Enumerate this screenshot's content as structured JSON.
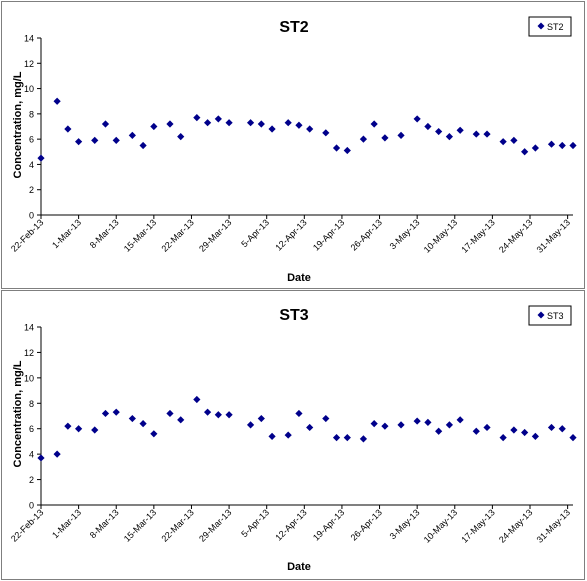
{
  "chart_data": [
    {
      "type": "scatter",
      "title": "ST2",
      "xlabel": "Date",
      "ylabel": "Concentration, mg/L",
      "ylim": [
        0,
        14
      ],
      "yticks": [
        "0",
        "2",
        "4",
        "6",
        "8",
        "10",
        "12",
        "14"
      ],
      "xlim": [
        "2013-02-22",
        "2013-06-01"
      ],
      "xticks": [
        {
          "date": "2013-02-22",
          "label": "22-Feb-13"
        },
        {
          "date": "2013-03-01",
          "label": "1-Mar-13"
        },
        {
          "date": "2013-03-08",
          "label": "8-Mar-13"
        },
        {
          "date": "2013-03-15",
          "label": "15-Mar-13"
        },
        {
          "date": "2013-03-22",
          "label": "22-Mar-13"
        },
        {
          "date": "2013-03-29",
          "label": "29-Mar-13"
        },
        {
          "date": "2013-04-05",
          "label": "5-Apr-13"
        },
        {
          "date": "2013-04-12",
          "label": "12-Apr-13"
        },
        {
          "date": "2013-04-19",
          "label": "19-Apr-13"
        },
        {
          "date": "2013-04-26",
          "label": "26-Apr-13"
        },
        {
          "date": "2013-05-03",
          "label": "3-May-13"
        },
        {
          "date": "2013-05-10",
          "label": "10-May-13"
        },
        {
          "date": "2013-05-17",
          "label": "17-May-13"
        },
        {
          "date": "2013-05-24",
          "label": "24-May-13"
        },
        {
          "date": "2013-05-31",
          "label": "31-May-13"
        }
      ],
      "legend": {
        "position": "top-right"
      },
      "grid": false,
      "series": [
        {
          "name": "ST2",
          "color": "#00008b",
          "marker": "diamond",
          "points": [
            {
              "x": "2013-02-22",
              "y": 4.5
            },
            {
              "x": "2013-02-25",
              "y": 9.0
            },
            {
              "x": "2013-02-27",
              "y": 6.8
            },
            {
              "x": "2013-03-01",
              "y": 5.8
            },
            {
              "x": "2013-03-04",
              "y": 5.9
            },
            {
              "x": "2013-03-06",
              "y": 7.2
            },
            {
              "x": "2013-03-08",
              "y": 5.9
            },
            {
              "x": "2013-03-11",
              "y": 6.3
            },
            {
              "x": "2013-03-13",
              "y": 5.5
            },
            {
              "x": "2013-03-15",
              "y": 7.0
            },
            {
              "x": "2013-03-18",
              "y": 7.2
            },
            {
              "x": "2013-03-20",
              "y": 6.2
            },
            {
              "x": "2013-03-23",
              "y": 7.7
            },
            {
              "x": "2013-03-25",
              "y": 7.3
            },
            {
              "x": "2013-03-27",
              "y": 7.6
            },
            {
              "x": "2013-03-29",
              "y": 7.3
            },
            {
              "x": "2013-04-02",
              "y": 7.3
            },
            {
              "x": "2013-04-04",
              "y": 7.2
            },
            {
              "x": "2013-04-06",
              "y": 6.8
            },
            {
              "x": "2013-04-09",
              "y": 7.3
            },
            {
              "x": "2013-04-11",
              "y": 7.1
            },
            {
              "x": "2013-04-13",
              "y": 6.8
            },
            {
              "x": "2013-04-16",
              "y": 6.5
            },
            {
              "x": "2013-04-18",
              "y": 5.3
            },
            {
              "x": "2013-04-20",
              "y": 5.1
            },
            {
              "x": "2013-04-23",
              "y": 6.0
            },
            {
              "x": "2013-04-25",
              "y": 7.2
            },
            {
              "x": "2013-04-27",
              "y": 6.1
            },
            {
              "x": "2013-04-30",
              "y": 6.3
            },
            {
              "x": "2013-05-03",
              "y": 7.6
            },
            {
              "x": "2013-05-05",
              "y": 7.0
            },
            {
              "x": "2013-05-07",
              "y": 6.6
            },
            {
              "x": "2013-05-09",
              "y": 6.2
            },
            {
              "x": "2013-05-11",
              "y": 6.7
            },
            {
              "x": "2013-05-14",
              "y": 6.4
            },
            {
              "x": "2013-05-16",
              "y": 6.4
            },
            {
              "x": "2013-05-19",
              "y": 5.8
            },
            {
              "x": "2013-05-21",
              "y": 5.9
            },
            {
              "x": "2013-05-23",
              "y": 5.0
            },
            {
              "x": "2013-05-25",
              "y": 5.3
            },
            {
              "x": "2013-05-28",
              "y": 5.6
            },
            {
              "x": "2013-05-30",
              "y": 5.5
            },
            {
              "x": "2013-06-01",
              "y": 5.5
            }
          ]
        }
      ]
    },
    {
      "type": "scatter",
      "title": "ST3",
      "xlabel": "Date",
      "ylabel": "Concentration, mg/L",
      "ylim": [
        0,
        14
      ],
      "yticks": [
        "0",
        "2",
        "4",
        "6",
        "8",
        "10",
        "12",
        "14"
      ],
      "xlim": [
        "2013-02-22",
        "2013-06-01"
      ],
      "xticks": [
        {
          "date": "2013-02-22",
          "label": "22-Feb-13"
        },
        {
          "date": "2013-03-01",
          "label": "1-Mar-13"
        },
        {
          "date": "2013-03-08",
          "label": "8-Mar-13"
        },
        {
          "date": "2013-03-15",
          "label": "15-Mar-13"
        },
        {
          "date": "2013-03-22",
          "label": "22-Mar-13"
        },
        {
          "date": "2013-03-29",
          "label": "29-Mar-13"
        },
        {
          "date": "2013-04-05",
          "label": "5-Apr-13"
        },
        {
          "date": "2013-04-12",
          "label": "12-Apr-13"
        },
        {
          "date": "2013-04-19",
          "label": "19-Apr-13"
        },
        {
          "date": "2013-04-26",
          "label": "26-Apr-13"
        },
        {
          "date": "2013-05-03",
          "label": "3-May-13"
        },
        {
          "date": "2013-05-10",
          "label": "10-May-13"
        },
        {
          "date": "2013-05-17",
          "label": "17-May-13"
        },
        {
          "date": "2013-05-24",
          "label": "24-May-13"
        },
        {
          "date": "2013-05-31",
          "label": "31-May-13"
        }
      ],
      "legend": {
        "position": "top-right"
      },
      "grid": false,
      "series": [
        {
          "name": "ST3",
          "color": "#00008b",
          "marker": "diamond",
          "points": [
            {
              "x": "2013-02-22",
              "y": 3.7
            },
            {
              "x": "2013-02-25",
              "y": 4.0
            },
            {
              "x": "2013-02-27",
              "y": 6.2
            },
            {
              "x": "2013-03-01",
              "y": 6.0
            },
            {
              "x": "2013-03-04",
              "y": 5.9
            },
            {
              "x": "2013-03-06",
              "y": 7.2
            },
            {
              "x": "2013-03-08",
              "y": 7.3
            },
            {
              "x": "2013-03-11",
              "y": 6.8
            },
            {
              "x": "2013-03-13",
              "y": 6.4
            },
            {
              "x": "2013-03-15",
              "y": 5.6
            },
            {
              "x": "2013-03-18",
              "y": 7.2
            },
            {
              "x": "2013-03-20",
              "y": 6.7
            },
            {
              "x": "2013-03-23",
              "y": 8.3
            },
            {
              "x": "2013-03-25",
              "y": 7.3
            },
            {
              "x": "2013-03-27",
              "y": 7.1
            },
            {
              "x": "2013-03-29",
              "y": 7.1
            },
            {
              "x": "2013-04-02",
              "y": 6.3
            },
            {
              "x": "2013-04-04",
              "y": 6.8
            },
            {
              "x": "2013-04-06",
              "y": 5.4
            },
            {
              "x": "2013-04-09",
              "y": 5.5
            },
            {
              "x": "2013-04-11",
              "y": 7.2
            },
            {
              "x": "2013-04-13",
              "y": 6.1
            },
            {
              "x": "2013-04-16",
              "y": 6.8
            },
            {
              "x": "2013-04-18",
              "y": 5.3
            },
            {
              "x": "2013-04-20",
              "y": 5.3
            },
            {
              "x": "2013-04-23",
              "y": 5.2
            },
            {
              "x": "2013-04-25",
              "y": 6.4
            },
            {
              "x": "2013-04-27",
              "y": 6.2
            },
            {
              "x": "2013-04-30",
              "y": 6.3
            },
            {
              "x": "2013-05-03",
              "y": 6.6
            },
            {
              "x": "2013-05-05",
              "y": 6.5
            },
            {
              "x": "2013-05-07",
              "y": 5.8
            },
            {
              "x": "2013-05-09",
              "y": 6.3
            },
            {
              "x": "2013-05-11",
              "y": 6.7
            },
            {
              "x": "2013-05-14",
              "y": 5.8
            },
            {
              "x": "2013-05-16",
              "y": 6.1
            },
            {
              "x": "2013-05-19",
              "y": 5.3
            },
            {
              "x": "2013-05-21",
              "y": 5.9
            },
            {
              "x": "2013-05-23",
              "y": 5.7
            },
            {
              "x": "2013-05-25",
              "y": 5.4
            },
            {
              "x": "2013-05-28",
              "y": 6.1
            },
            {
              "x": "2013-05-30",
              "y": 6.0
            },
            {
              "x": "2013-06-01",
              "y": 5.3
            }
          ]
        }
      ]
    }
  ]
}
